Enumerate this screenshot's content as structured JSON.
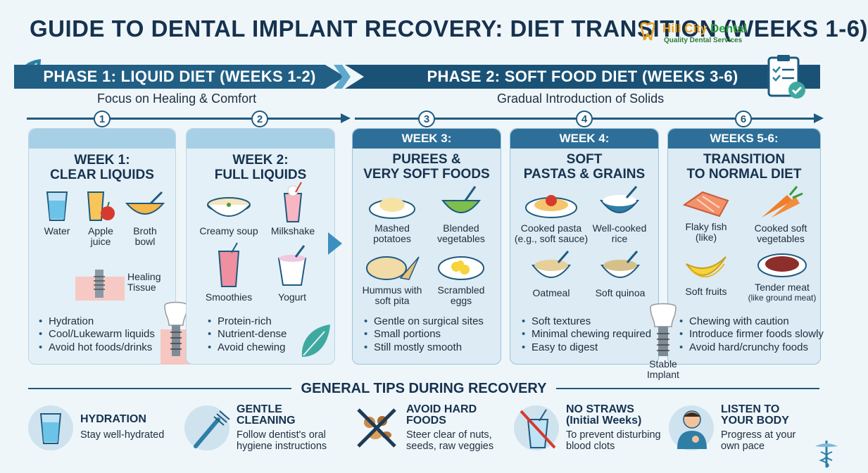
{
  "title": "GUIDE TO DENTAL IMPLANT RECOVERY: DIET TRANSITION (WEEKS 1-6)",
  "logo": {
    "name_part1": "Hill City ",
    "name_part2": "Dental",
    "tagline": "Quality Dental Services"
  },
  "phase1": {
    "label": "PHASE 1: LIQUID DIET (WEEKS 1-2)",
    "subtitle": "Focus on Healing & Comfort"
  },
  "phase2": {
    "label": "PHASE 2: SOFT FOOD DIET (WEEKS 3-6)",
    "subtitle": "Gradual Introduction of Solids"
  },
  "steps": [
    "1",
    "2",
    "3",
    "4",
    "6"
  ],
  "cards": [
    {
      "title": "WEEK 1:\nCLEAR LIQUIDS",
      "items": [
        {
          "icon": "water-glass-icon",
          "label": "Water"
        },
        {
          "icon": "apple-juice-icon",
          "label": "Apple\njuice"
        },
        {
          "icon": "broth-bowl-icon",
          "label": "Broth\nbowl"
        }
      ],
      "diagram_label": "Healing\nTissue",
      "bullets": [
        "Hydration",
        "Cool/Lukewarm liquids",
        "Avoid hot foods/drinks"
      ]
    },
    {
      "title": "WEEK 2:\nFULL LIQUIDS",
      "items": [
        {
          "icon": "soup-bowl-icon",
          "label": "Creamy soup"
        },
        {
          "icon": "milkshake-icon",
          "label": "Milkshake"
        },
        {
          "icon": "smoothie-icon",
          "label": "Smoothies"
        },
        {
          "icon": "yogurt-icon",
          "label": "Yogurt"
        }
      ],
      "bullets": [
        "Protein-rich",
        "Nutrient-dense",
        "Avoid chewing"
      ]
    },
    {
      "head": "WEEK 3:",
      "title": "PUREES &\nVERY SOFT FOODS",
      "items": [
        {
          "icon": "mashed-potatoes-icon",
          "label": "Mashed\npotatoes"
        },
        {
          "icon": "blended-vegetables-icon",
          "label": "Blended\nvegetables"
        },
        {
          "icon": "hummus-icon",
          "label": "Hummus with\nsoft pita"
        },
        {
          "icon": "scrambled-eggs-icon",
          "label": "Scrambled\neggs"
        }
      ],
      "bullets": [
        "Gentle on surgical sites",
        "Small portions",
        "Still mostly smooth"
      ]
    },
    {
      "head": "WEEK 4:",
      "title": "SOFT\nPASTAS & GRAINS",
      "items": [
        {
          "icon": "pasta-icon",
          "label": "Cooked pasta\n(e.g., soft sauce)"
        },
        {
          "icon": "rice-bowl-icon",
          "label": "Well-cooked\nrice"
        },
        {
          "icon": "oatmeal-icon",
          "label": "Oatmeal"
        },
        {
          "icon": "quinoa-icon",
          "label": "Soft quinoa"
        }
      ],
      "bullets": [
        "Soft textures",
        "Minimal chewing required",
        "Easy to digest"
      ]
    },
    {
      "head": "WEEKS 5-6:",
      "title": "TRANSITION\nTO NORMAL DIET",
      "items": [
        {
          "icon": "fish-icon",
          "label": "Flaky fish\n(like)"
        },
        {
          "icon": "carrots-icon",
          "label": "Cooked soft\nvegetables"
        },
        {
          "icon": "banana-icon",
          "label": "Soft fruits"
        },
        {
          "icon": "meat-icon",
          "label": "Tender meat"
        }
      ],
      "meat_note": "(like ground meat)",
      "bullets": [
        "Chewing with caution",
        "Introduce firmer foods slowly",
        "Avoid hard/crunchy foods"
      ]
    }
  ],
  "stable_implant": "Stable\nImplant",
  "tips_title": "GENERAL TIPS DURING RECOVERY",
  "tips": [
    {
      "icon": "water-glass-icon",
      "title": "HYDRATION",
      "desc": "Stay well-hydrated"
    },
    {
      "icon": "toothbrush-icon",
      "title": "GENTLE\nCLEANING",
      "desc": "Follow dentist's oral\nhygiene instructions"
    },
    {
      "icon": "no-hard-foods-icon",
      "title": "AVOID HARD\nFOODS",
      "desc": "Steer clear of nuts,\nseeds, raw veggies"
    },
    {
      "icon": "no-straw-icon",
      "title": "NO STRAWS\n(Initial Weeks)",
      "desc": "To prevent disturbing\nblood clots"
    },
    {
      "icon": "person-icon",
      "title": "LISTEN TO\nYOUR BODY",
      "desc": "Progress at your\nown pace"
    }
  ]
}
